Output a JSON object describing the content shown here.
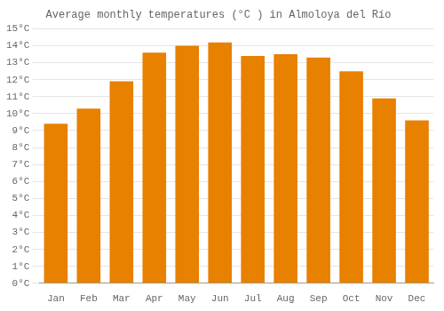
{
  "chart_data": {
    "type": "bar",
    "title": "Average monthly temperatures (°C ) in Almoloya del Río",
    "categories": [
      "Jan",
      "Feb",
      "Mar",
      "Apr",
      "May",
      "Jun",
      "Jul",
      "Aug",
      "Sep",
      "Oct",
      "Nov",
      "Dec"
    ],
    "values": [
      9.4,
      10.3,
      11.9,
      13.6,
      14.0,
      14.2,
      13.4,
      13.5,
      13.3,
      12.5,
      10.9,
      9.6
    ],
    "color": "#E88000",
    "ylim": [
      0,
      15
    ],
    "yticks": [
      {
        "value": 0,
        "label": "0°C"
      },
      {
        "value": 1,
        "label": "1°C"
      },
      {
        "value": 2,
        "label": "2°C"
      },
      {
        "value": 3,
        "label": "3°C"
      },
      {
        "value": 4,
        "label": "4°C"
      },
      {
        "value": 5,
        "label": "5°C"
      },
      {
        "value": 6,
        "label": "6°C"
      },
      {
        "value": 7,
        "label": "7°C"
      },
      {
        "value": 8,
        "label": "8°C"
      },
      {
        "value": 9,
        "label": "9°C"
      },
      {
        "value": 10,
        "label": "10°C"
      },
      {
        "value": 11,
        "label": "11°C"
      },
      {
        "value": 12,
        "label": "12°C"
      },
      {
        "value": 13,
        "label": "13°C"
      },
      {
        "value": 14,
        "label": "14°C"
      },
      {
        "value": 15,
        "label": "15°C"
      }
    ],
    "grid": true
  }
}
